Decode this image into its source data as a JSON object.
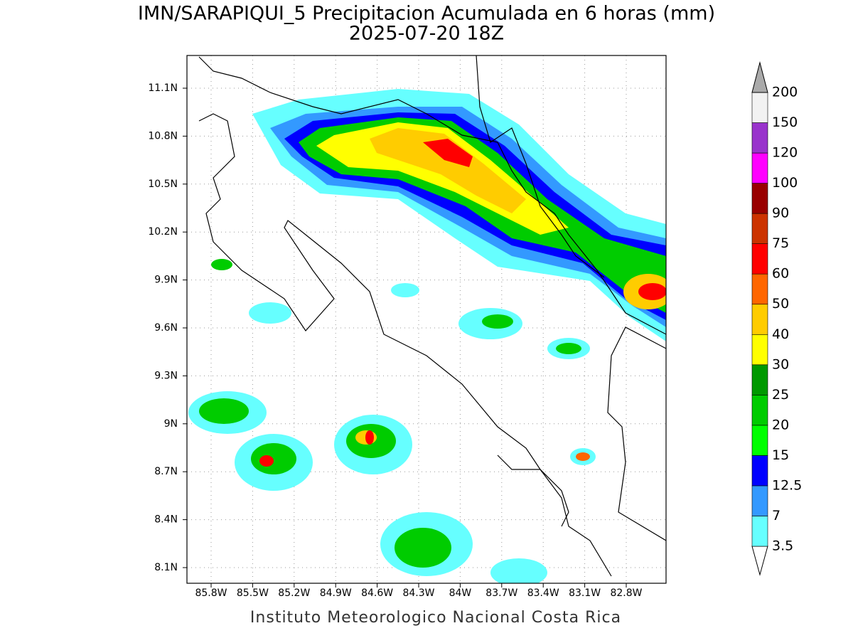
{
  "title": "IMN/SARAPIQUI_5 Precipitacion Acumulada en 6 horas (mm)",
  "subtitle": "2025-07-20 18Z",
  "lat_ticks": [
    "11.1N",
    "10.8N",
    "10.5N",
    "10.2N",
    "9.9N",
    "9.6N",
    "9.3N",
    "9N",
    "8.7N",
    "8.4N",
    "8.1N"
  ],
  "lon_ticks": [
    "85.8W",
    "85.5W",
    "85.2W",
    "84.9W",
    "84.6W",
    "84.3W",
    "84W",
    "83.7W",
    "83.4W",
    "83.1W",
    "82.8W"
  ],
  "legend": {
    "levels": [
      3.5,
      7,
      12.5,
      15,
      20,
      25,
      30,
      40,
      50,
      60,
      75,
      90,
      100,
      120,
      150,
      200
    ],
    "colors": [
      "#ffffff",
      "#66ffff",
      "#3399ff",
      "#0000ff",
      "#00ff00",
      "#00cc00",
      "#009900",
      "#ffff00",
      "#ffcc00",
      "#ff6600",
      "#ff0000",
      "#cc3300",
      "#990000",
      "#ff00ff",
      "#9933cc",
      "#f2f2f2",
      "#aaaaaa"
    ]
  },
  "footer": "Instituto Meteorologico Nacional Costa Rica"
}
